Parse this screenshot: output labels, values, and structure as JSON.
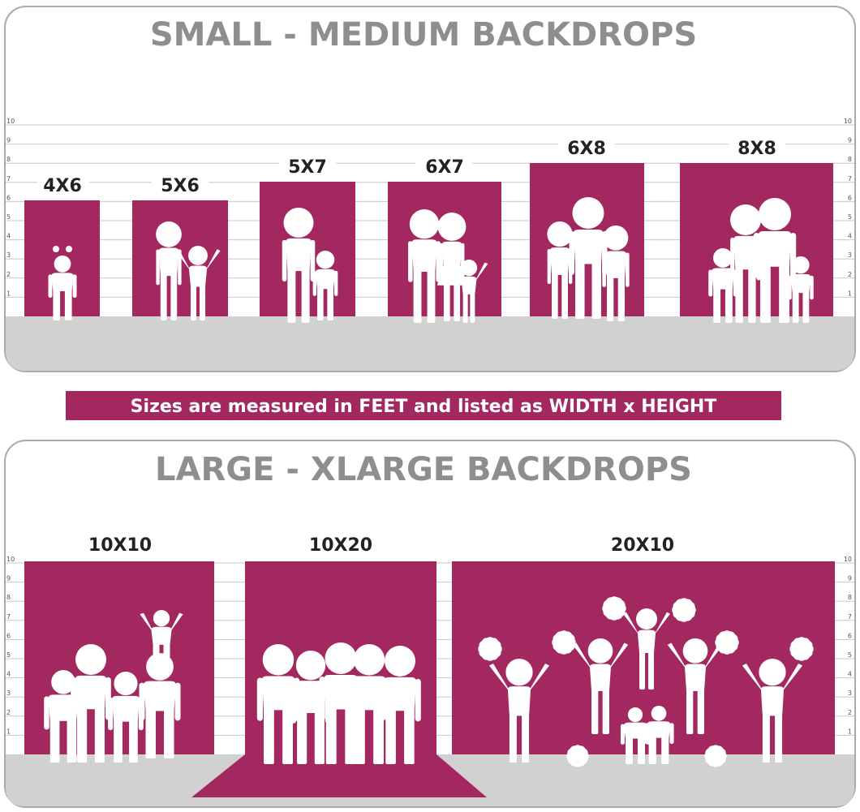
{
  "colors": {
    "backdrop": "#a3285f",
    "floor": "#d1d1d1",
    "panel_border": "#aaaaaa",
    "title": "#8e8e8e",
    "note_band": "#a3285f"
  },
  "small_section": {
    "title": "SMALL - MEDIUM BACKDROPS",
    "ticks": [
      "1",
      "2",
      "3",
      "4",
      "5",
      "6",
      "7",
      "8",
      "9",
      "10"
    ],
    "backdrops": [
      {
        "label": "4X6",
        "width_ft": 4,
        "height_ft": 6,
        "figures": "child-icon"
      },
      {
        "label": "5X6",
        "width_ft": 5,
        "height_ft": 6,
        "figures": "woman-and-child-icon"
      },
      {
        "label": "5X7",
        "width_ft": 5,
        "height_ft": 7,
        "figures": "man-and-child-icon"
      },
      {
        "label": "6X7",
        "width_ft": 6,
        "height_ft": 7,
        "figures": "couple-and-child-icon"
      },
      {
        "label": "6X8",
        "width_ft": 6,
        "height_ft": 8,
        "figures": "family-of-four-icon"
      },
      {
        "label": "8X8",
        "width_ft": 8,
        "height_ft": 8,
        "figures": "family-of-four-icon"
      }
    ]
  },
  "note": "Sizes are measured in FEET and listed as WIDTH x HEIGHT",
  "large_section": {
    "title": "LARGE - XLARGE BACKDROPS",
    "ticks": [
      "1",
      "2",
      "3",
      "4",
      "5",
      "6",
      "7",
      "8",
      "9",
      "10"
    ],
    "backdrops": [
      {
        "label": "10X10",
        "width_ft": 10,
        "height_ft": 10,
        "figures": "family-with-shoulder-ride-icon"
      },
      {
        "label": "10X20",
        "width_ft": 10,
        "height_ft": 20,
        "figures": "group-of-six-icon"
      },
      {
        "label": "20X10",
        "width_ft": 20,
        "height_ft": 10,
        "figures": "cheerleader-squad-icon"
      }
    ]
  }
}
